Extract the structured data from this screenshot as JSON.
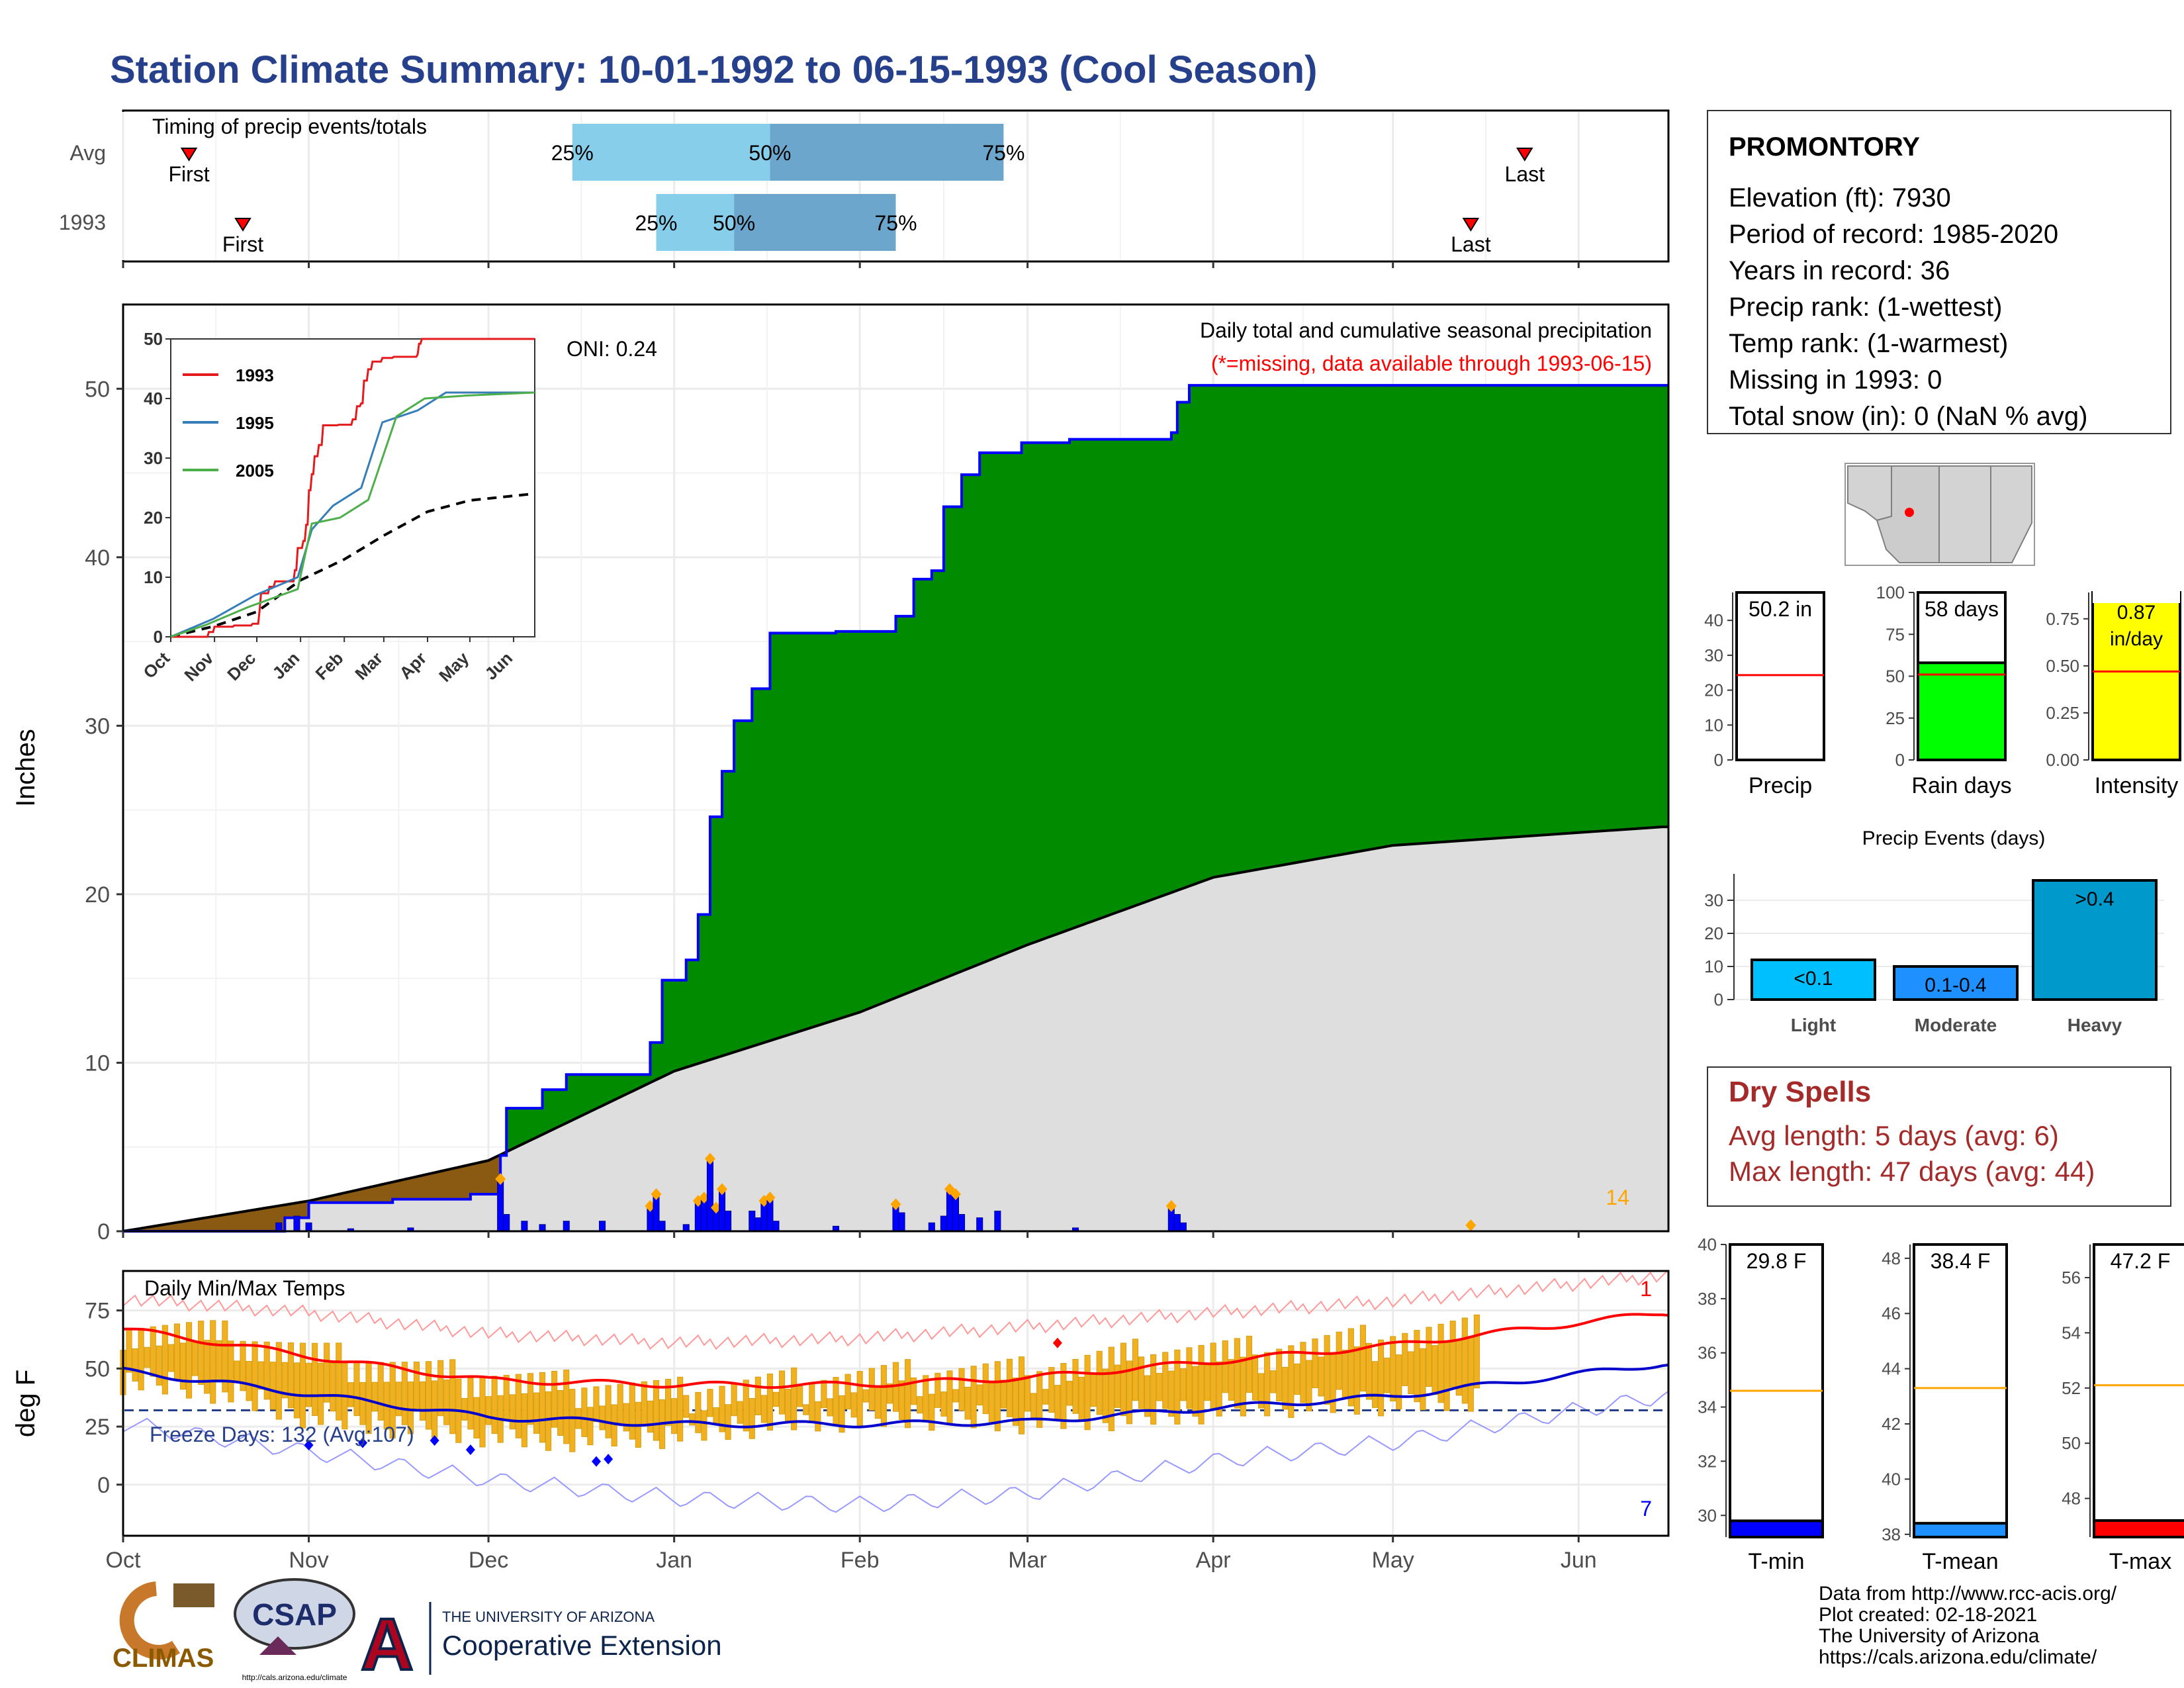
{
  "title": "Station Climate Summary: 10-01-1992 to 06-15-1993 (Cool Season)",
  "timing": {
    "label": "Timing of precip events/totals",
    "rows": [
      {
        "name": "Avg",
        "first_label": "First",
        "last_label": "Last",
        "first_date": "1992-10-12",
        "last_date": "1993-05-23",
        "p25": "1992-12-15",
        "p50": "1993-01-17",
        "p75": "1993-02-25"
      },
      {
        "name": "1993",
        "first_label": "First",
        "last_label": "Last",
        "first_date": "1992-10-21",
        "last_date": "1993-05-14",
        "p25": "1992-12-29",
        "p50": "1993-01-11",
        "p75": "1993-02-07"
      }
    ],
    "pct_labels": [
      "25%",
      "50%",
      "75%"
    ]
  },
  "precip_panel": {
    "ylabel": "Inches",
    "yticks": [
      0,
      10,
      20,
      30,
      40,
      50
    ],
    "ylim": [
      0,
      55
    ],
    "oni": "ONI: 0.24",
    "note1": "Daily total and cumulative seasonal precipitation",
    "note2": "(*=missing, data available through 1993-06-15)",
    "extreme_count": "14"
  },
  "inset": {
    "series": [
      {
        "name": "1993",
        "color": "#e41a1c"
      },
      {
        "name": "1995",
        "color": "#377eb8"
      },
      {
        "name": "2005",
        "color": "#4daf4a"
      }
    ],
    "yticks": [
      0,
      10,
      20,
      30,
      40,
      50
    ],
    "xticks": [
      "Oct",
      "Nov",
      "Dec",
      "Jan",
      "Feb",
      "Mar",
      "Apr",
      "May",
      "Jun"
    ]
  },
  "temp_panel": {
    "ylabel": "deg F",
    "title": "Daily Min/Max Temps",
    "yticks": [
      0,
      25,
      50,
      75
    ],
    "freeze": "Freeze Days: 132 (Avg:107)",
    "high_count": "1",
    "low_count": "7"
  },
  "months": [
    "Oct",
    "Nov",
    "Dec",
    "Jan",
    "Feb",
    "Mar",
    "Apr",
    "May",
    "Jun"
  ],
  "station": {
    "name": "PROMONTORY",
    "lines": [
      "Elevation (ft): 7930",
      "Period of record: 1985-2020",
      "Years in record: 36",
      "Precip rank:  (1-wettest)",
      "Temp rank:  (1-warmest)",
      "Missing in 1993: 0",
      "Total snow (in): 0 (NaN % avg)"
    ]
  },
  "small_bars": [
    {
      "label": "Precip",
      "value_text": "50.2 in",
      "value": 50.2,
      "avg": 24.3,
      "ylim": [
        0,
        48
      ],
      "yticks": [
        "0",
        "10",
        "20",
        "30",
        "40"
      ],
      "fill": "#ffffff"
    },
    {
      "label": "Rain days",
      "value_text": "58 days",
      "value": 58,
      "avg": 51,
      "ylim": [
        0,
        100
      ],
      "yticks": [
        "0",
        "25",
        "50",
        "75",
        "100"
      ],
      "fill": "#00ff00"
    },
    {
      "label": "Intensity",
      "value_text": "0.87 in/day",
      "value": 0.87,
      "avg": 0.47,
      "ylim": [
        0,
        0.89
      ],
      "yticks": [
        "0.00",
        "0.25",
        "0.50",
        "0.75"
      ],
      "fill": "#ffff00"
    }
  ],
  "events": {
    "title": "Precip Events (days)",
    "categories": [
      "Light",
      "Moderate",
      "Heavy"
    ],
    "bar_labels": [
      "<0.1",
      "0.1-0.4",
      ">0.4"
    ],
    "values": [
      12,
      10,
      36
    ],
    "yticks": [
      0,
      10,
      20,
      30
    ],
    "fills": [
      "#00bfff",
      "#1e90ff",
      "#0099cc"
    ]
  },
  "dry_spells": {
    "title": "Dry Spells",
    "line1": "Avg length: 5 days (avg: 6)",
    "line2": "Max length: 47 days (avg: 44)",
    "color": "#a52a2a"
  },
  "temp_bars": [
    {
      "label": "T-min",
      "value_text": "29.8 F",
      "value": 29.8,
      "avg": 34.6,
      "ylim": [
        29.2,
        40
      ],
      "yticks": [
        "30",
        "32",
        "34",
        "36",
        "38",
        "40"
      ],
      "fill": "#0000ff"
    },
    {
      "label": "T-mean",
      "value_text": "38.4 F",
      "value": 38.4,
      "avg": 43.3,
      "ylim": [
        37.9,
        48.5
      ],
      "yticks": [
        "38",
        "40",
        "42",
        "44",
        "46",
        "48"
      ],
      "fill": "#1e90ff"
    },
    {
      "label": "T-max",
      "value_text": "47.2 F",
      "value": 47.2,
      "avg": 52.1,
      "ylim": [
        46.6,
        57.2
      ],
      "yticks": [
        "48",
        "50",
        "52",
        "54",
        "56"
      ],
      "fill": "#ff0000"
    }
  ],
  "footer": {
    "lines": [
      "Data from http://www.rcc-acis.org/",
      "Plot created: 02-18-2021",
      "The University of Arizona",
      "https://cals.arizona.edu/climate/"
    ]
  },
  "logos": {
    "climas": "CLIMAS",
    "csap": "CSAP",
    "csap_url": "http://cals.arizona.edu/climate",
    "ua_top": "THE UNIVERSITY OF ARIZONA",
    "ua_bottom": "Cooperative Extension",
    "ua_letter": "A"
  },
  "chart_data": {
    "type": "area",
    "title": "Daily total and cumulative seasonal precipitation",
    "xlabel": "",
    "ylabel": "Inches",
    "ylim": [
      0,
      55
    ],
    "cumulative_1993": [
      {
        "date": "1992-10-01",
        "value": 0.0
      },
      {
        "date": "1992-10-28",
        "value": 0.8
      },
      {
        "date": "1992-11-01",
        "value": 1.7
      },
      {
        "date": "1992-11-15",
        "value": 1.9
      },
      {
        "date": "1992-11-28",
        "value": 2.2
      },
      {
        "date": "1992-12-03",
        "value": 4.5
      },
      {
        "date": "1992-12-04",
        "value": 7.3
      },
      {
        "date": "1992-12-10",
        "value": 8.4
      },
      {
        "date": "1992-12-14",
        "value": 9.3
      },
      {
        "date": "1992-12-27",
        "value": 9.3
      },
      {
        "date": "1992-12-28",
        "value": 11.2
      },
      {
        "date": "1992-12-30",
        "value": 14.9
      },
      {
        "date": "1993-01-03",
        "value": 16.1
      },
      {
        "date": "1993-01-05",
        "value": 18.8
      },
      {
        "date": "1993-01-07",
        "value": 24.6
      },
      {
        "date": "1993-01-09",
        "value": 27.3
      },
      {
        "date": "1993-01-11",
        "value": 30.3
      },
      {
        "date": "1993-01-14",
        "value": 32.2
      },
      {
        "date": "1993-01-17",
        "value": 35.5
      },
      {
        "date": "1993-01-28",
        "value": 35.6
      },
      {
        "date": "1993-02-07",
        "value": 36.5
      },
      {
        "date": "1993-02-10",
        "value": 38.7
      },
      {
        "date": "1993-02-13",
        "value": 39.2
      },
      {
        "date": "1993-02-15",
        "value": 43.0
      },
      {
        "date": "1993-02-18",
        "value": 44.9
      },
      {
        "date": "1993-02-21",
        "value": 46.2
      },
      {
        "date": "1993-02-28",
        "value": 46.8
      },
      {
        "date": "1993-03-08",
        "value": 47.0
      },
      {
        "date": "1993-03-25",
        "value": 47.4
      },
      {
        "date": "1993-03-26",
        "value": 49.2
      },
      {
        "date": "1993-03-28",
        "value": 50.2
      },
      {
        "date": "1993-06-15",
        "value": 50.2
      }
    ],
    "cumulative_avg": [
      {
        "date": "1992-10-01",
        "value": 0.0
      },
      {
        "date": "1992-11-01",
        "value": 1.8
      },
      {
        "date": "1992-12-01",
        "value": 4.2
      },
      {
        "date": "1993-01-01",
        "value": 9.5
      },
      {
        "date": "1993-02-01",
        "value": 13.0
      },
      {
        "date": "1993-03-01",
        "value": 17.0
      },
      {
        "date": "1993-04-01",
        "value": 21.0
      },
      {
        "date": "1993-05-01",
        "value": 22.9
      },
      {
        "date": "1993-06-15",
        "value": 24.0
      }
    ],
    "daily_bars": [
      {
        "date": "1992-10-27",
        "value": 0.5
      },
      {
        "date": "1992-10-30",
        "value": 0.9
      },
      {
        "date": "1992-11-01",
        "value": 0.5
      },
      {
        "date": "1992-11-08",
        "value": 0.15
      },
      {
        "date": "1992-11-18",
        "value": 0.2
      },
      {
        "date": "1992-12-03",
        "value": 3.1
      },
      {
        "date": "1992-12-04",
        "value": 1.0
      },
      {
        "date": "1992-12-07",
        "value": 0.6
      },
      {
        "date": "1992-12-10",
        "value": 0.4
      },
      {
        "date": "1992-12-14",
        "value": 0.6
      },
      {
        "date": "1992-12-20",
        "value": 0.6
      },
      {
        "date": "1992-12-28",
        "value": 1.5
      },
      {
        "date": "1992-12-29",
        "value": 2.2
      },
      {
        "date": "1992-12-30",
        "value": 0.6
      },
      {
        "date": "1993-01-03",
        "value": 0.4
      },
      {
        "date": "1993-01-05",
        "value": 1.8
      },
      {
        "date": "1993-01-06",
        "value": 2.0
      },
      {
        "date": "1993-01-07",
        "value": 4.3
      },
      {
        "date": "1993-01-08",
        "value": 1.4
      },
      {
        "date": "1993-01-09",
        "value": 2.5
      },
      {
        "date": "1993-01-10",
        "value": 1.2
      },
      {
        "date": "1993-01-14",
        "value": 1.2
      },
      {
        "date": "1993-01-15",
        "value": 0.8
      },
      {
        "date": "1993-01-16",
        "value": 1.8
      },
      {
        "date": "1993-01-17",
        "value": 2.0
      },
      {
        "date": "1993-01-18",
        "value": 0.6
      },
      {
        "date": "1993-01-28",
        "value": 0.3
      },
      {
        "date": "1993-02-07",
        "value": 1.6
      },
      {
        "date": "1993-02-08",
        "value": 1.1
      },
      {
        "date": "1993-02-13",
        "value": 0.5
      },
      {
        "date": "1993-02-15",
        "value": 0.9
      },
      {
        "date": "1993-02-16",
        "value": 2.5
      },
      {
        "date": "1993-02-17",
        "value": 2.2
      },
      {
        "date": "1993-02-18",
        "value": 1.0
      },
      {
        "date": "1993-02-21",
        "value": 0.8
      },
      {
        "date": "1993-02-24",
        "value": 1.2
      },
      {
        "date": "1993-03-09",
        "value": 0.2
      },
      {
        "date": "1993-03-25",
        "value": 1.5
      },
      {
        "date": "1993-03-26",
        "value": 1.0
      },
      {
        "date": "1993-03-27",
        "value": 0.5
      }
    ],
    "temps": {
      "ylim": [
        -22,
        92
      ],
      "freeze_line": 32,
      "avg_max": [
        {
          "date": "1992-10-01",
          "value": 67
        },
        {
          "date": "1992-10-20",
          "value": 60
        },
        {
          "date": "1992-11-10",
          "value": 52
        },
        {
          "date": "1992-12-01",
          "value": 45
        },
        {
          "date": "1993-01-01",
          "value": 43
        },
        {
          "date": "1993-02-01",
          "value": 43
        },
        {
          "date": "1993-03-01",
          "value": 46
        },
        {
          "date": "1993-04-01",
          "value": 53
        },
        {
          "date": "1993-05-01",
          "value": 60
        },
        {
          "date": "1993-06-15",
          "value": 74
        }
      ],
      "avg_min": [
        {
          "date": "1992-10-01",
          "value": 49
        },
        {
          "date": "1992-10-20",
          "value": 43
        },
        {
          "date": "1992-11-10",
          "value": 36
        },
        {
          "date": "1992-12-01",
          "value": 29
        },
        {
          "date": "1993-01-01",
          "value": 26
        },
        {
          "date": "1993-02-01",
          "value": 26
        },
        {
          "date": "1993-03-01",
          "value": 27
        },
        {
          "date": "1993-04-01",
          "value": 33
        },
        {
          "date": "1993-05-01",
          "value": 38
        },
        {
          "date": "1993-06-15",
          "value": 52
        }
      ],
      "record_max": [
        {
          "date": "1992-10-01",
          "value": 80
        },
        {
          "date": "1992-11-01",
          "value": 74
        },
        {
          "date": "1992-12-01",
          "value": 65
        },
        {
          "date": "1993-01-01",
          "value": 61
        },
        {
          "date": "1993-02-01",
          "value": 63
        },
        {
          "date": "1993-03-01",
          "value": 68
        },
        {
          "date": "1993-04-01",
          "value": 74
        },
        {
          "date": "1993-05-01",
          "value": 79
        },
        {
          "date": "1993-06-15",
          "value": 90
        }
      ],
      "record_min": [
        {
          "date": "1992-10-01",
          "value": 30
        },
        {
          "date": "1992-11-01",
          "value": 18
        },
        {
          "date": "1992-12-01",
          "value": 6
        },
        {
          "date": "1993-01-01",
          "value": -2
        },
        {
          "date": "1993-02-01",
          "value": -5
        },
        {
          "date": "1993-03-01",
          "value": 0
        },
        {
          "date": "1993-04-01",
          "value": 14
        },
        {
          "date": "1993-05-01",
          "value": 22
        },
        {
          "date": "1993-06-15",
          "value": 42
        }
      ],
      "obs_max_approx": [
        {
          "date": "1992-10-01",
          "value": 66
        },
        {
          "date": "1992-10-15",
          "value": 64
        },
        {
          "date": "1992-11-01",
          "value": 55
        },
        {
          "date": "1992-11-20",
          "value": 47
        },
        {
          "date": "1992-12-10",
          "value": 42
        },
        {
          "date": "1993-01-01",
          "value": 38
        },
        {
          "date": "1993-01-20",
          "value": 42
        },
        {
          "date": "1993-02-10",
          "value": 46
        },
        {
          "date": "1993-03-01",
          "value": 47
        },
        {
          "date": "1993-03-20",
          "value": 55
        },
        {
          "date": "1993-04-10",
          "value": 56
        },
        {
          "date": "1993-05-01",
          "value": 62
        },
        {
          "date": "1993-05-15",
          "value": 65
        }
      ],
      "obs_min_approx": [
        {
          "date": "1992-10-01",
          "value": 45
        },
        {
          "date": "1992-10-15",
          "value": 42
        },
        {
          "date": "1992-11-01",
          "value": 30
        },
        {
          "date": "1992-11-20",
          "value": 25
        },
        {
          "date": "1992-12-10",
          "value": 20
        },
        {
          "date": "1993-01-01",
          "value": 22
        },
        {
          "date": "1993-01-20",
          "value": 28
        },
        {
          "date": "1993-02-10",
          "value": 30
        },
        {
          "date": "1993-03-01",
          "value": 28
        },
        {
          "date": "1993-03-20",
          "value": 30
        },
        {
          "date": "1993-04-10",
          "value": 35
        },
        {
          "date": "1993-05-01",
          "value": 36
        },
        {
          "date": "1993-05-15",
          "value": 38
        }
      ]
    }
  }
}
